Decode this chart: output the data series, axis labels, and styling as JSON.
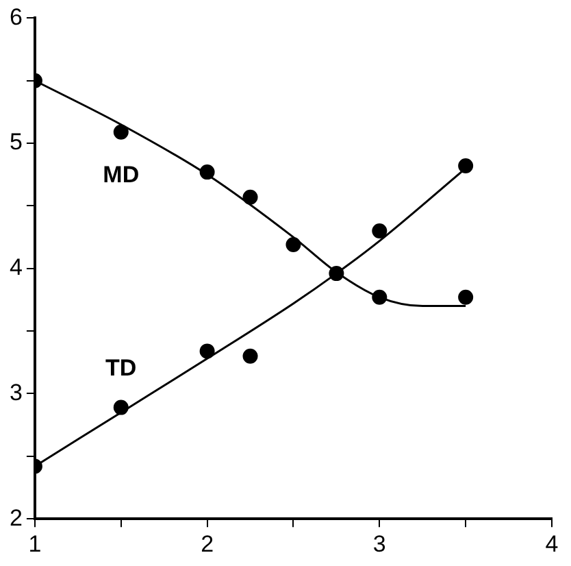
{
  "chart_data": {
    "type": "scatter",
    "xlim": [
      1,
      4
    ],
    "ylim": [
      2,
      6
    ],
    "xticks": [
      1,
      {
        "value": 1.5,
        "label": null
      },
      2,
      {
        "value": 2.5,
        "label": null
      },
      3,
      {
        "value": 3.5,
        "label": null
      },
      4
    ],
    "yticks": [
      2,
      {
        "value": 2.5,
        "label": null
      },
      3,
      {
        "value": 3.5,
        "label": null
      },
      4,
      {
        "value": 4.5,
        "label": null
      },
      5,
      {
        "value": 5.5,
        "label": null
      },
      6
    ],
    "grid": false,
    "legend": false,
    "marker": "circle",
    "series": [
      {
        "name": "MD",
        "color": "#000000",
        "x": [
          1,
          1.5,
          2,
          2.25,
          2.5,
          3,
          3.5
        ],
        "values": [
          5.5,
          5.09,
          4.77,
          4.57,
          4.19,
          3.77,
          3.77
        ]
      },
      {
        "name": "TD",
        "color": "#000000",
        "x": [
          1,
          1.5,
          2,
          2.25,
          2.75,
          3,
          3.5
        ],
        "values": [
          2.42,
          2.89,
          3.34,
          3.3,
          3.96,
          4.3,
          4.82
        ]
      },
      {
        "type": "line",
        "color": "#000000",
        "marker": "none",
        "x": [
          1,
          1.5,
          2,
          2.5,
          2.75,
          3,
          3.25,
          3.5
        ],
        "values": [
          5.5,
          5.15,
          4.75,
          4.25,
          3.97,
          3.77,
          3.7,
          3.7
        ]
      },
      {
        "type": "line",
        "color": "#000000",
        "marker": "none",
        "x": [
          1,
          1.5,
          2,
          2.5,
          2.75,
          3,
          3.5
        ],
        "values": [
          2.42,
          2.85,
          3.28,
          3.72,
          3.96,
          4.22,
          4.8
        ]
      }
    ]
  }
}
